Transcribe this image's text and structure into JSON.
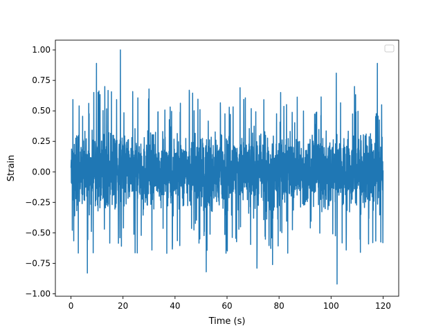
{
  "chart_data": {
    "type": "line",
    "title": "",
    "xlabel": "Time (s)",
    "ylabel": "Strain",
    "xlim": [
      -6,
      126
    ],
    "ylim": [
      -1.02,
      1.08
    ],
    "xticks": [
      0,
      20,
      40,
      60,
      80,
      100,
      120
    ],
    "xtick_labels": [
      "0",
      "20",
      "40",
      "60",
      "80",
      "100",
      "120"
    ],
    "yticks": [
      -1.0,
      -0.75,
      -0.5,
      -0.25,
      0.0,
      0.25,
      0.5,
      0.75,
      1.0
    ],
    "ytick_labels": [
      "−1.00",
      "−0.75",
      "−0.50",
      "−0.25",
      "0.00",
      "0.25",
      "0.50",
      "0.75",
      "1.00"
    ],
    "grid": false,
    "legend": {
      "placement": "top-right",
      "entries": []
    },
    "series": [
      {
        "color": "#1f77b4",
        "x_range": [
          0,
          120
        ],
        "typical_range": [
          -0.45,
          0.45
        ],
        "max": 1.0,
        "min": -0.92,
        "peaks": [
          {
            "x": 9.8,
            "y": 0.89
          },
          {
            "x": 19.0,
            "y": 1.0
          },
          {
            "x": 102.0,
            "y": 0.81
          },
          {
            "x": 117.8,
            "y": 0.89
          },
          {
            "x": 6.3,
            "y": -0.83
          },
          {
            "x": 102.3,
            "y": -0.92
          },
          {
            "x": 52.0,
            "y": -0.82
          },
          {
            "x": 71.5,
            "y": -0.79
          },
          {
            "x": 77.5,
            "y": -0.76
          },
          {
            "x": 13.0,
            "y": 0.7
          },
          {
            "x": 30.0,
            "y": 0.68
          },
          {
            "x": 65.0,
            "y": 0.69
          },
          {
            "x": 109.0,
            "y": 0.7
          }
        ]
      }
    ]
  }
}
